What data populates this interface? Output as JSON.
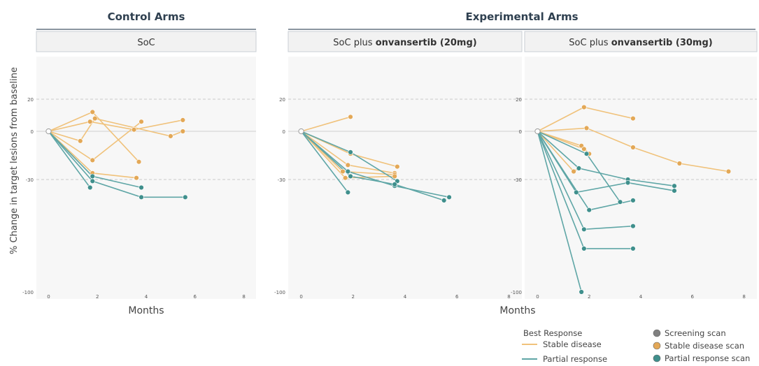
{
  "groups": {
    "control": "Control Arms",
    "experimental": "Experimental Arms"
  },
  "colors": {
    "stable_line": "#f0c27b",
    "stable_point": "#e3a857",
    "partial_line": "#5fa6a6",
    "partial_point": "#3f8f8c",
    "screening_point": "#808080",
    "panel_bg": "#f7f7f7",
    "header_bg": "#f2f2f2"
  },
  "legend": {
    "title": "Best Response",
    "lines": [
      {
        "label": "Stable disease",
        "key": "stable"
      },
      {
        "label": "Partial response",
        "key": "partial"
      }
    ],
    "points": [
      {
        "label": "Screening scan",
        "key": "screening"
      },
      {
        "label": "Stable disease scan",
        "key": "stable"
      },
      {
        "label": "Partial response scan",
        "key": "partial"
      }
    ]
  },
  "chart_data": [
    {
      "type": "line",
      "title": "SoC",
      "title_bold": "",
      "xlabel": "Months",
      "ylabel": "% Change in target lesions from baseline",
      "xlim": [
        -0.5,
        8.5
      ],
      "ylim": [
        -100,
        45
      ],
      "xticks": [
        0,
        2,
        4,
        6,
        8
      ],
      "yticks": [
        20,
        0,
        -30,
        -100
      ],
      "series": [
        {
          "response": "stable",
          "points": [
            [
              0,
              0
            ],
            [
              1.7,
              6
            ],
            [
              3.5,
              1
            ],
            [
              5.5,
              7
            ]
          ]
        },
        {
          "response": "stable",
          "points": [
            [
              0,
              0
            ],
            [
              1.8,
              12
            ],
            [
              3.7,
              -19
            ]
          ]
        },
        {
          "response": "stable",
          "points": [
            [
              0,
              0
            ],
            [
              1.3,
              -6
            ],
            [
              1.9,
              8
            ],
            [
              5,
              -3
            ],
            [
              5.5,
              0
            ]
          ]
        },
        {
          "response": "stable",
          "points": [
            [
              0,
              0
            ],
            [
              1.8,
              -18
            ],
            [
              3.8,
              6
            ]
          ]
        },
        {
          "response": "stable",
          "points": [
            [
              0,
              0
            ],
            [
              1.8,
              -26
            ],
            [
              3.6,
              -29
            ]
          ]
        },
        {
          "response": "partial",
          "points": [
            [
              0,
              0
            ],
            [
              1.8,
              -28
            ],
            [
              3.8,
              -35
            ]
          ]
        },
        {
          "response": "partial",
          "points": [
            [
              0,
              0
            ],
            [
              1.8,
              -31
            ],
            [
              3.8,
              -41
            ],
            [
              5.6,
              -41
            ]
          ]
        },
        {
          "response": "partial",
          "points": [
            [
              0,
              0
            ],
            [
              1.7,
              -35
            ]
          ]
        }
      ]
    },
    {
      "type": "line",
      "title": "SoC plus ",
      "title_bold": "onvansertib (20mg)",
      "xlabel": "Months",
      "ylabel": "",
      "xlim": [
        -0.5,
        8.5
      ],
      "ylim": [
        -100,
        45
      ],
      "xticks": [
        0,
        2,
        4,
        6,
        8
      ],
      "yticks": [
        20,
        0,
        -30,
        -100
      ],
      "series": [
        {
          "response": "stable",
          "points": [
            [
              0,
              0
            ],
            [
              1.9,
              9
            ]
          ]
        },
        {
          "response": "stable",
          "points": [
            [
              0,
              0
            ],
            [
              1.9,
              -14
            ],
            [
              3.7,
              -22
            ]
          ]
        },
        {
          "response": "stable",
          "points": [
            [
              0,
              0
            ],
            [
              1.8,
              -21
            ],
            [
              3.6,
              -26
            ]
          ]
        },
        {
          "response": "stable",
          "points": [
            [
              0,
              0
            ],
            [
              1.6,
              -25
            ],
            [
              3.6,
              -27
            ]
          ]
        },
        {
          "response": "stable",
          "points": [
            [
              0,
              0
            ],
            [
              1.7,
              -29
            ],
            [
              3.6,
              -28
            ]
          ]
        },
        {
          "response": "partial",
          "points": [
            [
              0,
              0
            ],
            [
              1.9,
              -13
            ],
            [
              3.7,
              -31
            ]
          ]
        },
        {
          "response": "partial",
          "points": [
            [
              0,
              0
            ],
            [
              1.8,
              -25
            ],
            [
              3.6,
              -34
            ],
            [
              5.7,
              -41
            ]
          ]
        },
        {
          "response": "partial",
          "points": [
            [
              0,
              0
            ],
            [
              1.9,
              -28
            ],
            [
              3.6,
              -33
            ],
            [
              5.5,
              -43
            ]
          ]
        },
        {
          "response": "partial",
          "points": [
            [
              0,
              0
            ],
            [
              1.8,
              -38
            ]
          ]
        }
      ]
    },
    {
      "type": "line",
      "title": "SoC plus ",
      "title_bold": "onvansertib (30mg)",
      "xlabel": "",
      "ylabel": "",
      "xlim": [
        -0.5,
        8.5
      ],
      "ylim": [
        -100,
        45
      ],
      "xticks": [
        0,
        2,
        4,
        6,
        8
      ],
      "yticks": [
        20,
        0,
        -30,
        -100
      ],
      "series": [
        {
          "response": "stable",
          "points": [
            [
              0,
              0
            ],
            [
              1.8,
              15
            ],
            [
              3.7,
              8
            ]
          ]
        },
        {
          "response": "stable",
          "points": [
            [
              0,
              0
            ],
            [
              1.9,
              2
            ],
            [
              3.7,
              -10
            ],
            [
              5.5,
              -20
            ],
            [
              7.4,
              -25
            ]
          ]
        },
        {
          "response": "stable",
          "points": [
            [
              0,
              0
            ],
            [
              1.7,
              -9
            ],
            [
              2,
              -14
            ]
          ]
        },
        {
          "response": "stable",
          "points": [
            [
              0,
              0
            ],
            [
              1.8,
              -11
            ]
          ]
        },
        {
          "response": "stable",
          "points": [
            [
              0,
              0
            ],
            [
              1.4,
              -25
            ],
            [
              1.6,
              -23
            ]
          ]
        },
        {
          "response": "partial",
          "points": [
            [
              0,
              0
            ],
            [
              1.6,
              -23
            ],
            [
              3.5,
              -30
            ],
            [
              5.3,
              -34
            ]
          ]
        },
        {
          "response": "partial",
          "points": [
            [
              0,
              0
            ],
            [
              1.9,
              -14
            ],
            [
              3.2,
              -44
            ]
          ]
        },
        {
          "response": "partial",
          "points": [
            [
              0,
              0
            ],
            [
              1.5,
              -38
            ],
            [
              3.5,
              -32
            ],
            [
              5.3,
              -37
            ]
          ]
        },
        {
          "response": "partial",
          "points": [
            [
              0,
              0
            ],
            [
              2,
              -49
            ],
            [
              3.7,
              -43
            ]
          ]
        },
        {
          "response": "partial",
          "points": [
            [
              0,
              0
            ],
            [
              1.8,
              -61
            ],
            [
              3.7,
              -59
            ]
          ]
        },
        {
          "response": "partial",
          "points": [
            [
              0,
              0
            ],
            [
              1.8,
              -73
            ],
            [
              3.7,
              -73
            ]
          ]
        },
        {
          "response": "partial",
          "points": [
            [
              0,
              0
            ],
            [
              1.7,
              -100
            ]
          ]
        }
      ]
    }
  ]
}
